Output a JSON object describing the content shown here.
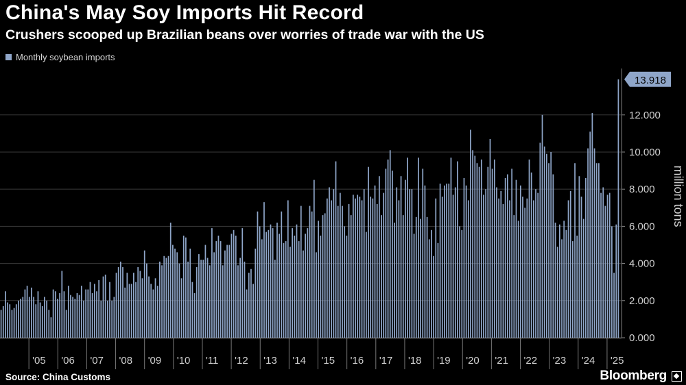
{
  "title": "China's May Soy Imports Hit Record",
  "subtitle": "Crushers scooped up Brazilian beans over worries of trade war with the US",
  "source": "Source: China Customs",
  "brand": "Bloomberg",
  "colors": {
    "background": "#000000",
    "bar": "#8fa6c9",
    "gridline": "#3a3a3a",
    "axis_text": "#d0d0d0",
    "callout_bg": "#8fa6c9",
    "callout_text": "#0a0a0a"
  },
  "chart_data": {
    "type": "bar",
    "series_name": "Monthly soybean imports",
    "ylabel": "million tons",
    "ylim": [
      0,
      14.5
    ],
    "y_ticks": [
      "0.000",
      "2.000",
      "4.000",
      "6.000",
      "8.000",
      "10.000",
      "12.000"
    ],
    "y_tick_values": [
      0,
      2,
      4,
      6,
      8,
      10,
      12
    ],
    "x_ticks": [
      "'05",
      "'06",
      "'07",
      "'08",
      "'09",
      "'10",
      "'11",
      "'12",
      "'13",
      "'14",
      "'15",
      "'16",
      "'17",
      "'18",
      "'19",
      "'20",
      "'21",
      "'22",
      "'23",
      "'24",
      "'25"
    ],
    "x_tick_positions": [
      2005,
      2006,
      2007,
      2008,
      2009,
      2010,
      2011,
      2012,
      2013,
      2014,
      2015,
      2016,
      2017,
      2018,
      2019,
      2020,
      2021,
      2022,
      2023,
      2024,
      2025
    ],
    "x_range": [
      2004.0,
      2025.5
    ],
    "callout_label": "13.918",
    "callout_value": 13.918,
    "yearly_monthly_values": {
      "2004": [
        1.5,
        1.7,
        2.5,
        1.9,
        1.8,
        1.5,
        1.6,
        1.8,
        2.0,
        2.1,
        2.2,
        2.6
      ],
      "2005": [
        2.8,
        2.2,
        2.7,
        2.2,
        1.8,
        2.5,
        1.9,
        1.7,
        2.2,
        2.0,
        1.5,
        1.1
      ],
      "2006": [
        2.6,
        2.5,
        2.1,
        2.4,
        3.6,
        2.5,
        1.5,
        2.8,
        2.3,
        2.2,
        2.1,
        2.4
      ],
      "2007": [
        2.3,
        2.8,
        2.0,
        2.6,
        2.6,
        3.0,
        2.4,
        2.9,
        2.5,
        3.1,
        2.0,
        3.3
      ],
      "2008": [
        3.4,
        2.0,
        3.0,
        2.0,
        2.2,
        3.5,
        3.8,
        4.1,
        3.8,
        2.7,
        3.5,
        2.9
      ],
      "2009": [
        2.9,
        3.5,
        3.0,
        3.8,
        3.6,
        3.2,
        4.7,
        4.0,
        3.3,
        2.9,
        2.6,
        3.2
      ],
      "2010": [
        2.8,
        4.1,
        3.9,
        4.4,
        4.3,
        4.4,
        6.2,
        5.0,
        4.8,
        4.6,
        4.0,
        3.2
      ],
      "2011": [
        5.5,
        5.4,
        4.1,
        4.8,
        3.0,
        2.4,
        3.8,
        4.5,
        4.2,
        4.2,
        5.0,
        4.3
      ],
      "2012": [
        3.9,
        5.9,
        4.6,
        5.2,
        5.5,
        5.2,
        3.9,
        4.7,
        5.0,
        5.0,
        5.6,
        5.8
      ],
      "2013": [
        5.5,
        3.9,
        4.3,
        5.9,
        4.1,
        2.6,
        3.5,
        3.7,
        2.9,
        4.8,
        6.8,
        6.0
      ],
      "2014": [
        5.3,
        7.3,
        5.7,
        5.8,
        6.1,
        5.9,
        4.2,
        6.2,
        5.6,
        6.8,
        5.1,
        5.2
      ],
      "2015": [
        7.4,
        4.9,
        5.9,
        5.5,
        6.1,
        5.2,
        7.1,
        4.7,
        5.6,
        5.9,
        7.1,
        6.8
      ],
      "2016": [
        8.5,
        4.6,
        6.3,
        5.5,
        6.6,
        6.7,
        7.5,
        8.1,
        7.4,
        8.0,
        9.5,
        7.1
      ],
      "2017": [
        7.8,
        7.1,
        6.0,
        5.5,
        7.2,
        6.6,
        7.7,
        7.5,
        7.7,
        7.6,
        7.4,
        8.0
      ],
      "2018": [
        5.7,
        9.2,
        7.6,
        7.5,
        8.2,
        7.2,
        8.7,
        6.6,
        7.8,
        9.1,
        9.6,
        10.1
      ],
      "2019": [
        9.0,
        6.2,
        8.1,
        7.4,
        8.7,
        6.6,
        8.5,
        9.7,
        8.0,
        8.0,
        5.6,
        6.5
      ],
      "2020": [
        9.7,
        6.4,
        9.1,
        8.2,
        6.5,
        5.3,
        5.8,
        4.4,
        7.5,
        5.1,
        8.3,
        7.6
      ],
      "2021": [
        8.2,
        8.3,
        8.3,
        9.7,
        7.7,
        8.1,
        9.5,
        6.0,
        5.8,
        8.6,
        8.2,
        7.4
      ],
      "2022": [
        11.2,
        10.1,
        9.8,
        9.4,
        9.2,
        9.6,
        7.7,
        8.0,
        9.2,
        10.7,
        9.1,
        9.6
      ],
      "2023": [
        8.1,
        7.5,
        7.9,
        7.2,
        8.6,
        8.8,
        7.4,
        9.1,
        6.6,
        8.5,
        6.3,
        8.2
      ],
      "2024": [
        7.6,
        7.0,
        7.5,
        9.6,
        8.9,
        7.4,
        8.0,
        7.8,
        10.5,
        12.0,
        10.3,
        9.9
      ]
    },
    "tail_values": [
      9.4,
      10.0,
      8.8,
      6.2,
      4.9,
      6.1,
      5.3,
      6.3,
      5.8,
      7.4,
      7.9,
      5.2,
      9.4,
      5.5,
      8.7,
      7.6,
      6.4,
      8.6,
      10.2,
      11.1,
      12.1,
      10.2,
      9.4,
      9.4,
      7.8,
      8.1,
      7.1,
      7.7,
      7.8,
      6.0,
      3.5,
      6.1,
      13.918
    ]
  }
}
